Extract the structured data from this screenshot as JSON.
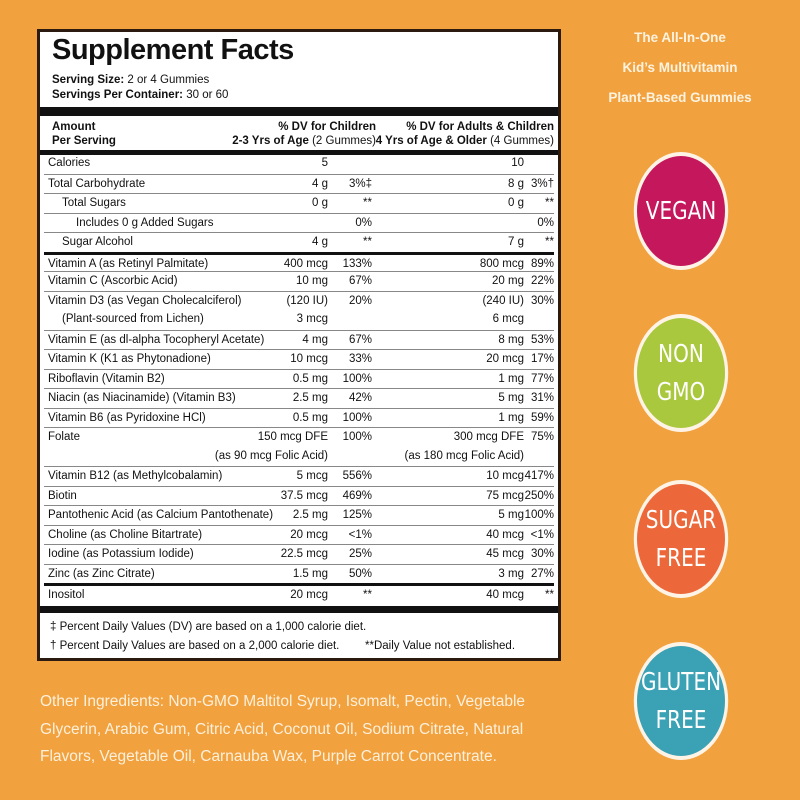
{
  "panel": {
    "title": "Supplement Facts",
    "serving_size_label": "Serving Size:",
    "serving_size": "2 or 4 Gummies",
    "servings_label": "Servings Per Container:",
    "servings": "30 or 60",
    "header": {
      "amount": "Amount",
      "per_serving": "Per Serving",
      "child_line1": "% DV for Children",
      "child_line2_bold": "2-3 Yrs of Age",
      "child_line2": "(2 Gummes)",
      "adult_line1": "% DV for Adults & Children",
      "adult_line2_bold": "4 Yrs of Age & Older",
      "adult_line2": "(4 Gummes)"
    },
    "rows": [
      {
        "name": "Calories",
        "ca": "5",
        "cp": "",
        "aa": "10",
        "ap": ""
      },
      {
        "name": "Total Carbohydrate",
        "ca": "4 g",
        "cp": "3%‡",
        "aa": "8 g",
        "ap": "3%†"
      },
      {
        "name": "   Total Sugars",
        "ca": "0 g",
        "cp": "**",
        "aa": "0 g",
        "ap": "**",
        "indent": 1
      },
      {
        "name": "Includes 0 g Added Sugars",
        "ca": "",
        "cp": "0%",
        "aa": "",
        "ap": "0%",
        "indent": 2
      },
      {
        "name": "Sugar Alcohol",
        "ca": "4 g",
        "cp": "**",
        "aa": "7 g",
        "ap": "**",
        "indent": 1
      },
      {
        "name": "Vitamin A (as Retinyl Palmitate)",
        "ca": "400 mcg",
        "cp": "133%",
        "aa": "800 mcg",
        "ap": "89%",
        "sep": "thick"
      },
      {
        "name": "Vitamin C (Ascorbic Acid)",
        "ca": "10 mg",
        "cp": "67%",
        "aa": "20 mg",
        "ap": "22%"
      },
      {
        "name": "Vitamin D3 (as Vegan Cholecalciferol)",
        "ca": "(120 IU)",
        "cp": "20%",
        "aa": "(240 IU)",
        "ap": "30%"
      },
      {
        "name": "(Plant-sourced from Lichen)",
        "ca": "3 mcg",
        "cp": "",
        "aa": "6 mcg",
        "ap": "",
        "sep": "none",
        "indent": 1
      },
      {
        "name": "Vitamin E (as dl-alpha Tocopheryl Acetate)",
        "ca": "4 mg",
        "cp": "67%",
        "aa": "8 mg",
        "ap": "53%"
      },
      {
        "name": "Vitamin K (K1 as Phytonadione)",
        "ca": "10 mcg",
        "cp": "33%",
        "aa": "20 mcg",
        "ap": "17%"
      },
      {
        "name": "Riboflavin (Vitamin B2)",
        "ca": "0.5 mg",
        "cp": "100%",
        "aa": "1 mg",
        "ap": "77%"
      },
      {
        "name": "Niacin (as Niacinamide) (Vitamin B3)",
        "ca": "2.5 mg",
        "cp": "42%",
        "aa": "5 mg",
        "ap": "31%"
      },
      {
        "name": "Vitamin B6 (as Pyridoxine HCl)",
        "ca": "0.5 mg",
        "cp": "100%",
        "aa": "1 mg",
        "ap": "59%"
      },
      {
        "name": "Folate",
        "ca": "150 mcg DFE",
        "cp": "100%",
        "aa": "300 mcg DFE",
        "ap": "75%"
      },
      {
        "name": "",
        "ca": "(as 90 mcg Folic Acid)",
        "cp": "",
        "aa": "(as 180 mcg Folic Acid)",
        "ap": "",
        "sep": "none"
      },
      {
        "name": "Vitamin B12 (as Methylcobalamin)",
        "ca": "5 mcg",
        "cp": "556%",
        "aa": "10 mcg",
        "ap": "417%"
      },
      {
        "name": "Biotin",
        "ca": "37.5 mcg",
        "cp": "469%",
        "aa": "75 mcg",
        "ap": "250%"
      },
      {
        "name": "Pantothenic Acid (as Calcium Pantothenate)",
        "ca": "2.5 mg",
        "cp": "125%",
        "aa": "5 mg",
        "ap": "100%"
      },
      {
        "name": "Choline (as Choline Bitartrate)",
        "ca": "20 mcg",
        "cp": "<1%",
        "aa": "40 mcg",
        "ap": "<1%"
      },
      {
        "name": "Iodine (as Potassium Iodide)",
        "ca": "22.5 mcg",
        "cp": "25%",
        "aa": "45 mcg",
        "ap": "30%"
      },
      {
        "name": "Zinc (as Zinc Citrate)",
        "ca": "1.5 mg",
        "cp": "50%",
        "aa": "3 mg",
        "ap": "27%"
      },
      {
        "name": "Inositol",
        "ca": "20 mcg",
        "cp": "**",
        "aa": "40 mcg",
        "ap": "**",
        "sep": "thick"
      }
    ],
    "footnote1": "‡ Percent Daily Values (DV) are based on a 1,000 calorie diet.",
    "footnote2": "† Percent Daily Values are based on a 2,000 calorie diet.",
    "footnote3": "**Daily Value not established."
  },
  "tagline": [
    "The All-In-One",
    "Kid’s Multivitamin",
    "Plant-Based Gummies"
  ],
  "badges": [
    {
      "line1": "VEGAN",
      "line2": "",
      "color": "#c5175b"
    },
    {
      "line1": "NON",
      "line2": "GMO",
      "color": "#a9c83e"
    },
    {
      "line1": "SUGAR",
      "line2": "FREE",
      "color": "#ec683a"
    },
    {
      "line1": "GLUTEN",
      "line2": "FREE",
      "color": "#3ba1b5"
    }
  ],
  "other_ingredients": "Other Ingredients: Non-GMO Maltitol Syrup, Isomalt, Pectin, Vegetable Glycerin, Arabic Gum, Citric Acid, Coconut Oil, Sodium Citrate, Natural Flavors, Vegetable Oil, Carnauba Wax, Purple Carrot Concentrate."
}
